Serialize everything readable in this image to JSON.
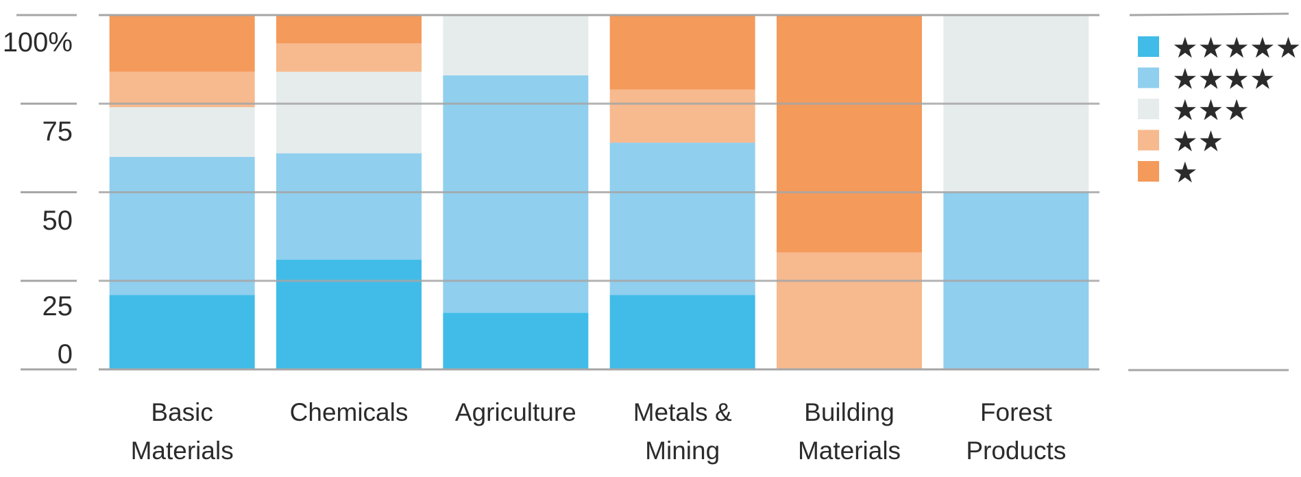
{
  "chart_data": {
    "type": "bar",
    "stacked": true,
    "title": "",
    "xlabel": "",
    "ylabel": "",
    "ylim": [
      0,
      100
    ],
    "grid": true,
    "legend_placement": "right",
    "y_ticks": [
      "0",
      "25",
      "50",
      "75",
      "100%"
    ],
    "categories": [
      [
        "Basic",
        "Materials"
      ],
      [
        "Chemicals"
      ],
      [
        "Agriculture"
      ],
      [
        "Metals &",
        "Mining"
      ],
      [
        "Building",
        "Materials"
      ],
      [
        "Forest",
        "Products"
      ]
    ],
    "series": [
      {
        "name": "★★★★★",
        "color": "#41BCE8",
        "values": [
          21,
          31,
          16,
          21,
          0,
          0
        ]
      },
      {
        "name": "★★★★",
        "color": "#90CFEE",
        "values": [
          39,
          30,
          67,
          43,
          0,
          50
        ]
      },
      {
        "name": "★★★",
        "color": "#E6ECEC",
        "values": [
          14,
          23,
          17,
          0,
          0,
          50
        ]
      },
      {
        "name": "★★",
        "color": "#F7B98E",
        "values": [
          10,
          8,
          0,
          15,
          33,
          0
        ]
      },
      {
        "name": "★",
        "color": "#F49A5B",
        "values": [
          16,
          8,
          0,
          21,
          67,
          0
        ]
      }
    ],
    "gridline_color": "#A6A6A6"
  }
}
